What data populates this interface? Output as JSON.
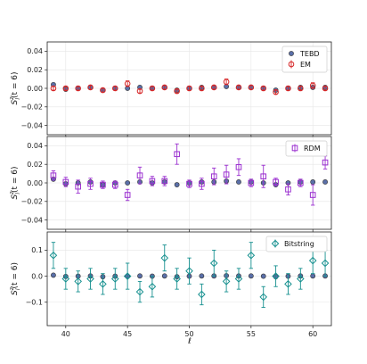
{
  "chart_data": {
    "type": "scatter",
    "layout": "3 stacked panels, shared x axis",
    "xlabel": "ℓ",
    "x_ticks": [
      40,
      45,
      50,
      55,
      60
    ],
    "xlim": [
      38.5,
      61.5
    ],
    "grid": true,
    "x": [
      39,
      40,
      41,
      42,
      43,
      44,
      45,
      46,
      47,
      48,
      49,
      50,
      51,
      52,
      53,
      54,
      55,
      56,
      57,
      58,
      59,
      60,
      61
    ],
    "panels": [
      {
        "ylabel": "S_l^z(t = 6)",
        "ylim": [
          -0.05,
          0.05
        ],
        "y_ticks": [
          -0.04,
          -0.02,
          0.0,
          0.02,
          0.04
        ],
        "y_tick_labels": [
          "−0.04",
          "−0.02",
          "0.00",
          "0.02",
          "0.04"
        ],
        "legend_position": "top-right",
        "series": [
          {
            "name": "TEBD",
            "marker": "circle-filled",
            "color": "#5a6fa8",
            "values": [
              0.004,
              -0.001,
              0.0,
              0.001,
              -0.002,
              0.0,
              0.0,
              0.001,
              0.0,
              0.001,
              -0.002,
              0.0,
              0.001,
              0.001,
              0.002,
              0.001,
              0.001,
              0.0,
              -0.002,
              0.0,
              0.001,
              0.001,
              0.001
            ]
          },
          {
            "name": "EM",
            "marker": "circle-open",
            "color": "#d62728",
            "values": [
              0.0,
              0.0,
              0.0,
              0.001,
              -0.002,
              0.0,
              0.005,
              -0.003,
              0.0,
              0.001,
              -0.003,
              0.0,
              0.0,
              0.001,
              0.007,
              0.001,
              0.001,
              0.0,
              -0.004,
              0.0,
              0.0,
              0.003,
              0.0
            ],
            "errors": [
              0.002,
              0.002,
              0.002,
              0.002,
              0.002,
              0.002,
              0.003,
              0.002,
              0.002,
              0.002,
              0.002,
              0.002,
              0.002,
              0.002,
              0.003,
              0.002,
              0.002,
              0.002,
              0.002,
              0.002,
              0.002,
              0.003,
              0.002
            ]
          }
        ]
      },
      {
        "ylabel": "S_l^z(t = 6)",
        "ylim": [
          -0.05,
          0.05
        ],
        "y_ticks": [
          -0.04,
          -0.02,
          0.0,
          0.02,
          0.04
        ],
        "y_tick_labels": [
          "−0.04",
          "−0.02",
          "0.00",
          "0.02",
          "0.04"
        ],
        "legend_position": "top-right",
        "series": [
          {
            "name": "",
            "marker": "circle-filled",
            "color": "#5a6fa8",
            "values": [
              0.004,
              -0.001,
              0.0,
              0.001,
              -0.002,
              0.0,
              0.0,
              0.001,
              0.0,
              0.001,
              -0.002,
              0.0,
              0.001,
              0.001,
              0.002,
              0.001,
              0.001,
              0.0,
              -0.002,
              0.0,
              0.001,
              0.001,
              0.001
            ]
          },
          {
            "name": "RDM",
            "marker": "square-open",
            "color": "#9b30d0",
            "values": [
              0.008,
              0.001,
              -0.004,
              -0.001,
              -0.002,
              -0.002,
              -0.013,
              0.008,
              0.002,
              0.002,
              0.031,
              -0.001,
              -0.001,
              0.007,
              0.009,
              0.017,
              0.0,
              0.007,
              0.001,
              -0.007,
              0.0,
              -0.013,
              0.022
            ],
            "errors": [
              0.005,
              0.005,
              0.007,
              0.006,
              0.004,
              0.004,
              0.006,
              0.009,
              0.005,
              0.005,
              0.011,
              0.004,
              0.006,
              0.009,
              0.01,
              0.009,
              0.004,
              0.012,
              0.004,
              0.006,
              0.004,
              0.011,
              0.007
            ]
          }
        ]
      },
      {
        "ylabel": "S_l^z(t = 6)",
        "ylim": [
          -0.19,
          0.17
        ],
        "y_ticks": [
          -0.1,
          0.0,
          0.1
        ],
        "y_tick_labels": [
          "−0.1",
          "0.0",
          "0.1"
        ],
        "legend_position": "top-right",
        "series": [
          {
            "name": "",
            "marker": "circle-filled",
            "color": "#5a6fa8",
            "values": [
              0.004,
              -0.001,
              0.0,
              0.001,
              -0.002,
              0.0,
              0.0,
              0.001,
              0.0,
              0.001,
              -0.002,
              0.0,
              0.001,
              0.001,
              0.002,
              0.001,
              0.001,
              0.0,
              -0.002,
              0.0,
              0.001,
              0.001,
              0.001
            ]
          },
          {
            "name": "Bitstring",
            "marker": "diamond-open",
            "color": "#16908f",
            "values": [
              0.08,
              -0.01,
              -0.02,
              -0.01,
              -0.03,
              -0.01,
              0.0,
              -0.06,
              -0.04,
              0.07,
              -0.01,
              0.02,
              -0.07,
              0.05,
              -0.02,
              -0.01,
              0.08,
              -0.08,
              0.0,
              -0.03,
              -0.01,
              0.06,
              0.05
            ],
            "errors": [
              0.05,
              0.04,
              0.04,
              0.04,
              0.04,
              0.04,
              0.05,
              0.04,
              0.04,
              0.05,
              0.04,
              0.05,
              0.04,
              0.05,
              0.04,
              0.04,
              0.05,
              0.04,
              0.04,
              0.04,
              0.04,
              0.05,
              0.05
            ]
          }
        ]
      }
    ]
  }
}
